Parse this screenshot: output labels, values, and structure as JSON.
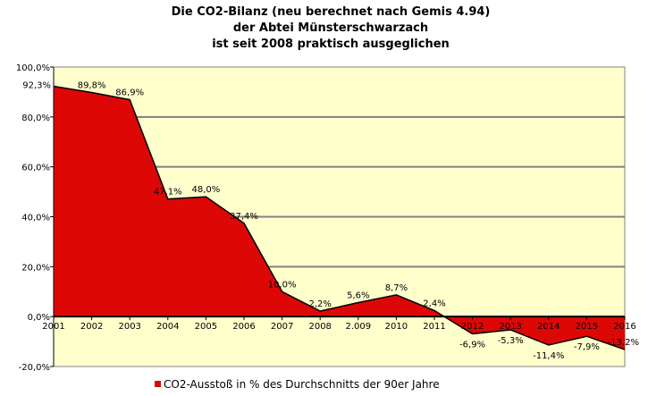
{
  "chart_data": {
    "type": "area",
    "title": [
      "Die CO2-Bilanz (neu berechnet nach Gemis 4.94)",
      "der Abtei Münsterschwarzach",
      "ist seit 2008 praktisch ausgeglichen"
    ],
    "categories": [
      "2001",
      "2002",
      "2003",
      "2004",
      "2005",
      "2006",
      "2007",
      "2008",
      "2.009",
      "2010",
      "2011",
      "2012",
      "2013",
      "2014",
      "2015",
      "2016"
    ],
    "series": [
      {
        "name": "CO2-Ausstoß in % des Durchschnitts der 90er Jahre",
        "values": [
          92.3,
          89.8,
          86.9,
          47.1,
          48.0,
          37.4,
          10.0,
          2.2,
          5.6,
          8.7,
          2.4,
          -6.9,
          -5.3,
          -11.4,
          -7.9,
          -13.2
        ],
        "labels": [
          "92,3%",
          "89,8%",
          "86,9%",
          "47,1%",
          "48,0%",
          "37,4%",
          "10,0%",
          "2,2%",
          "5,6%",
          "8,7%",
          "2,4%",
          "-6,9%",
          "-5,3%",
          "-11,4%",
          "-7,9%",
          "-13,2%"
        ],
        "color": "#dd0806"
      }
    ],
    "yticks": [
      100,
      80,
      60,
      40,
      20,
      0,
      -20
    ],
    "ytick_labels": [
      "100,0%",
      "80,0%",
      "60,0%",
      "40,0%",
      "20,0%",
      "0,0%",
      "-20,0%"
    ],
    "ylim": [
      -20,
      100
    ],
    "grid": true,
    "plot_background": "#ffffcc",
    "legend_position": "bottom",
    "xlabel": "",
    "ylabel": ""
  }
}
